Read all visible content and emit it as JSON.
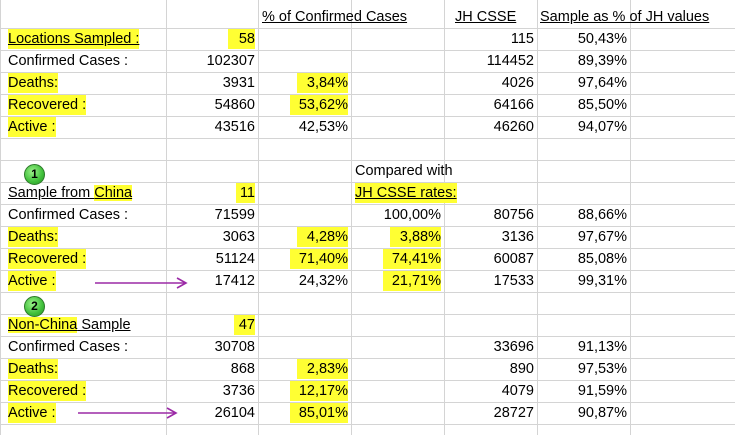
{
  "headers": {
    "pct_confirmed": "% of Confirmed Cases",
    "jh_csse": "JH CSSE",
    "sample_pct": "Sample as % of JH values"
  },
  "section1": {
    "title": "Locations Sampled :",
    "title_value": "58",
    "title_jh": "115",
    "title_pct": "50,43%",
    "rows": [
      {
        "label": "Confirmed Cases :",
        "value": "102307",
        "pct": "",
        "jh": "114452",
        "sample": "89,39%"
      },
      {
        "label": "Deaths:",
        "value": "3931",
        "pct": "3,84%",
        "jh": "4026",
        "sample": "97,64%"
      },
      {
        "label": "Recovered :",
        "value": "54860",
        "pct": "53,62%",
        "jh": "64166",
        "sample": "85,50%"
      },
      {
        "label": "Active :",
        "value": "43516",
        "pct": "42,53%",
        "jh": "46260",
        "sample": "94,07%"
      }
    ]
  },
  "section2": {
    "badge": "1",
    "compared_line1": "Compared with",
    "compared_line2": "JH CSSE rates:",
    "title_pre": "Sample from ",
    "title_hl": "China",
    "title_value": "11",
    "rows": [
      {
        "label": "Confirmed Cases :",
        "value": "71599",
        "pct": "",
        "jh_rate": "100,00%",
        "jh": "80756",
        "sample": "88,66%"
      },
      {
        "label": "Deaths:",
        "value": "3063",
        "pct": "4,28%",
        "jh_rate": "3,88%",
        "jh": "3136",
        "sample": "97,67%"
      },
      {
        "label": "Recovered :",
        "value": "51124",
        "pct": "71,40%",
        "jh_rate": "74,41%",
        "jh": "60087",
        "sample": "85,08%"
      },
      {
        "label": "Active :",
        "value": "17412",
        "pct": "24,32%",
        "jh_rate": "21,71%",
        "jh": "17533",
        "sample": "99,31%"
      }
    ]
  },
  "section3": {
    "badge": "2",
    "title_hl": "Non-China",
    "title_post": " Sample",
    "title_value": "47",
    "rows": [
      {
        "label": "Confirmed Cases :",
        "value": "30708",
        "pct": "",
        "jh": "33696",
        "sample": "91,13%"
      },
      {
        "label": "Deaths:",
        "value": "868",
        "pct": "2,83%",
        "jh": "890",
        "sample": "97,53%"
      },
      {
        "label": "Recovered :",
        "value": "3736",
        "pct": "12,17%",
        "jh": "4079",
        "sample": "91,59%"
      },
      {
        "label": "Active :",
        "value": "26104",
        "pct": "85,01%",
        "jh": "28727",
        "sample": "90,87%"
      }
    ]
  },
  "colors": {
    "highlight": "#ffff33",
    "arrow": "#9b2aa6",
    "grid": "#d4d4d4",
    "badge": "#3fbf3a"
  },
  "icons": {
    "badge": "numbered-green-circle",
    "arrow": "right-arrow"
  }
}
